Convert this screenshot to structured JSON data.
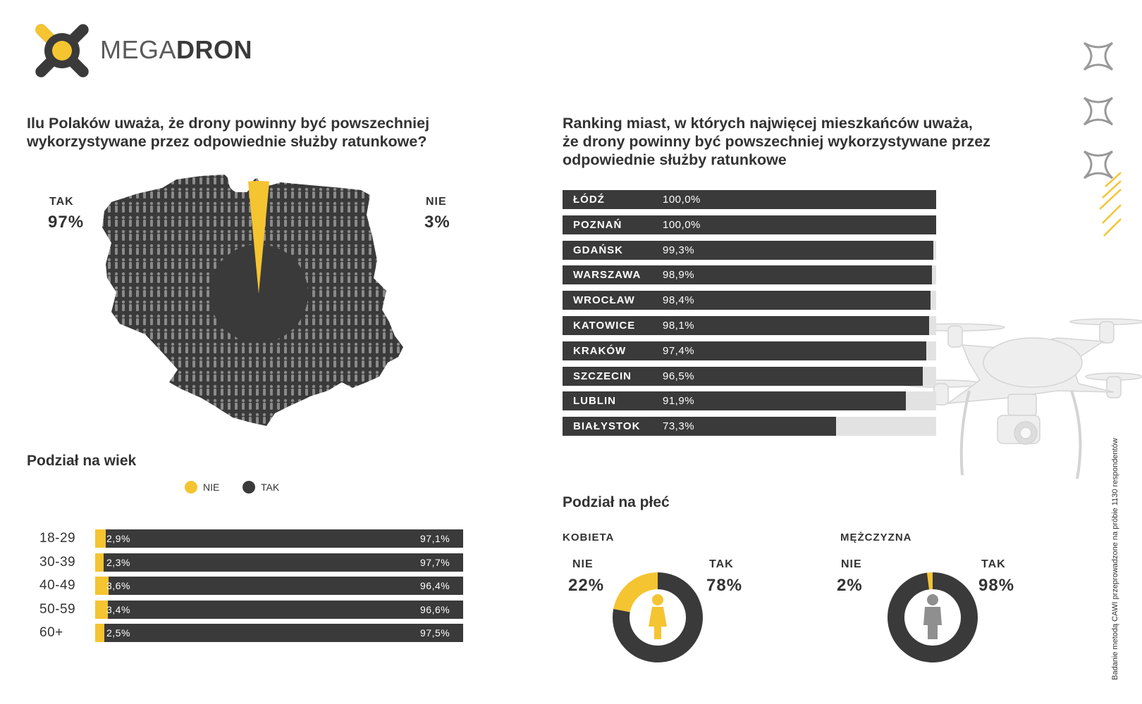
{
  "brand": {
    "part1": "MEGA",
    "part2": "DRON"
  },
  "map_section": {
    "title_line1": "Ilu Polaków uważa, że drony powinny być powszechniej",
    "title_line2": "wykorzystywane przez odpowiednie służby ratunkowe?",
    "tak_label": "TAK",
    "tak_value": "97%",
    "nie_label": "NIE",
    "nie_value": "3%"
  },
  "ranking_section": {
    "title_line1": "Ranking miast, w których najwięcej mieszkańców uważa,",
    "title_line2": "że drony powinny być powszechniej wykorzystywane przez",
    "title_line3": "odpowiednie służby ratunkowe"
  },
  "age_section": {
    "title": "Podział na wiek",
    "legend": [
      {
        "label": "NIE",
        "color": "#f5c431"
      },
      {
        "label": "TAK",
        "color": "#3a3a3a"
      }
    ]
  },
  "gender_section": {
    "title": "Podział na płeć",
    "female": {
      "title": "KOBIETA",
      "nie_label": "NIE",
      "nie_value": "22%",
      "tak_label": "TAK",
      "tak_value": "78%"
    },
    "male": {
      "title": "MĘŻCZYZNA",
      "nie_label": "NIE",
      "nie_value": "2%",
      "tak_label": "TAK",
      "tak_value": "98%"
    }
  },
  "footnote": "Badanie metodą CAWI przeprowadzone na próbie 1130 respondentów",
  "colors": {
    "dark": "#3a3a3a",
    "yellow": "#f5c431",
    "track": "#e2e2e2"
  },
  "chart_data": [
    {
      "type": "pie",
      "categories": [
        "TAK",
        "NIE"
      ],
      "values": [
        97,
        3
      ]
    },
    {
      "type": "bar",
      "categories": [
        "ŁÓDŹ",
        "POZNAŃ",
        "GDAŃSK",
        "WARSZAWA",
        "WROCŁAW",
        "KATOWICE",
        "KRAKÓW",
        "SZCZECIN",
        "LUBLIN",
        "BIAŁYSTOK"
      ],
      "values": [
        100.0,
        100.0,
        99.3,
        98.9,
        98.4,
        98.1,
        97.4,
        96.5,
        91.9,
        73.3
      ],
      "value_labels": [
        "100,0%",
        "100,0%",
        "99,3%",
        "98,9%",
        "98,4%",
        "98,1%",
        "97,4%",
        "96,5%",
        "91,9%",
        "73,3%"
      ],
      "xlim": [
        0,
        100
      ]
    },
    {
      "type": "bar",
      "categories": [
        "18-29",
        "30-39",
        "40-49",
        "50-59",
        "60+"
      ],
      "series": [
        {
          "name": "NIE",
          "values": [
            2.9,
            2.3,
            3.6,
            3.4,
            2.5
          ],
          "labels": [
            "2,9%",
            "2,3%",
            "3,6%",
            "3,4%",
            "2,5%"
          ]
        },
        {
          "name": "TAK",
          "values": [
            97.1,
            97.7,
            96.4,
            96.6,
            97.5
          ],
          "labels": [
            "97,1%",
            "97,7%",
            "96,4%",
            "96,6%",
            "97,5%"
          ]
        }
      ],
      "stacked": true
    },
    {
      "type": "pie",
      "categories": [
        "NIE",
        "TAK"
      ],
      "values": [
        22,
        78
      ]
    },
    {
      "type": "pie",
      "categories": [
        "NIE",
        "TAK"
      ],
      "values": [
        2,
        98
      ]
    }
  ]
}
